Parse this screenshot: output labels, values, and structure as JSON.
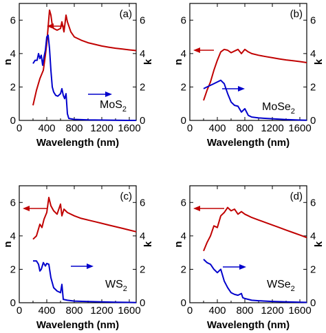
{
  "figure": {
    "colors": {
      "n": "#c00000",
      "k": "#0000cc",
      "axis": "#000000"
    }
  },
  "chart_data": [
    {
      "type": "line",
      "panel": "(a)",
      "material": "MoS",
      "material_sub": "2",
      "xlabel": "Wavelength (nm)",
      "ylabel_left": "n",
      "ylabel_right": "k",
      "xlim": [
        0,
        1700
      ],
      "ylim": [
        0,
        7
      ],
      "xticks": [
        0,
        400,
        800,
        1200,
        1600
      ],
      "yticks": [
        0,
        2,
        4,
        6
      ],
      "series": [
        {
          "name": "n",
          "axis": "left",
          "x": [
            200,
            250,
            300,
            350,
            380,
            400,
            420,
            440,
            460,
            480,
            500,
            550,
            600,
            620,
            650,
            680,
            700,
            750,
            800,
            900,
            1000,
            1100,
            1200,
            1300,
            1400,
            1500,
            1600,
            1700
          ],
          "y": [
            0.9,
            1.8,
            2.5,
            3.0,
            3.9,
            4.6,
            5.6,
            6.6,
            6.3,
            5.7,
            5.5,
            5.4,
            5.5,
            5.9,
            5.3,
            6.3,
            5.9,
            5.3,
            5.0,
            4.8,
            4.65,
            4.55,
            4.45,
            4.38,
            4.32,
            4.27,
            4.22,
            4.18
          ]
        },
        {
          "name": "k",
          "axis": "right",
          "x": [
            200,
            230,
            260,
            280,
            300,
            320,
            340,
            360,
            380,
            400,
            420,
            440,
            460,
            480,
            500,
            530,
            560,
            600,
            620,
            640,
            660,
            680,
            700,
            720,
            800,
            1000,
            1200,
            1400,
            1600,
            1700
          ],
          "y": [
            3.4,
            3.6,
            3.6,
            4.0,
            3.7,
            3.9,
            3.3,
            3.8,
            4.2,
            5.0,
            5.1,
            4.3,
            3.0,
            2.0,
            1.7,
            1.5,
            1.45,
            1.6,
            1.9,
            1.5,
            1.3,
            1.6,
            0.4,
            0.12,
            0.06,
            0.03,
            0.02,
            0.01,
            0.0,
            0.0
          ]
        }
      ]
    },
    {
      "type": "line",
      "panel": "(b)",
      "material": "MoSe",
      "material_sub": "2",
      "xlabel": "Wavelength (nm)",
      "ylabel_left": "n",
      "ylabel_right": "k",
      "xlim": [
        0,
        1700
      ],
      "ylim": [
        0,
        7
      ],
      "xticks": [
        0,
        400,
        800,
        1200,
        1600
      ],
      "yticks": [
        0,
        2,
        4,
        6
      ],
      "series": [
        {
          "name": "n",
          "axis": "left",
          "x": [
            200,
            250,
            300,
            350,
            400,
            450,
            500,
            550,
            600,
            650,
            700,
            750,
            800,
            850,
            900,
            1000,
            1100,
            1200,
            1300,
            1400,
            1500,
            1600,
            1700
          ],
          "y": [
            1.2,
            1.8,
            2.3,
            3.0,
            3.6,
            4.1,
            4.25,
            4.2,
            4.05,
            4.15,
            4.25,
            4.0,
            4.25,
            4.1,
            4.0,
            3.9,
            3.82,
            3.75,
            3.68,
            3.62,
            3.57,
            3.52,
            3.46
          ]
        },
        {
          "name": "k",
          "axis": "right",
          "x": [
            200,
            250,
            300,
            350,
            400,
            450,
            500,
            550,
            600,
            650,
            700,
            750,
            800,
            850,
            900,
            1000,
            1200,
            1400,
            1600,
            1700
          ],
          "y": [
            1.9,
            2.0,
            2.1,
            2.2,
            2.3,
            2.4,
            2.2,
            1.6,
            1.1,
            0.9,
            0.85,
            0.5,
            0.7,
            0.3,
            0.2,
            0.15,
            0.1,
            0.05,
            0.02,
            0.01
          ]
        }
      ]
    },
    {
      "type": "line",
      "panel": "(c)",
      "material": "WS",
      "material_sub": "2",
      "xlabel": "Wavelength (nm)",
      "ylabel_left": "n",
      "ylabel_right": "k",
      "xlim": [
        0,
        1700
      ],
      "ylim": [
        0,
        7
      ],
      "xticks": [
        0,
        400,
        800,
        1200,
        1600
      ],
      "yticks": [
        0,
        2,
        4,
        6
      ],
      "series": [
        {
          "name": "n",
          "axis": "left",
          "x": [
            200,
            250,
            300,
            330,
            360,
            400,
            430,
            460,
            500,
            550,
            600,
            620,
            650,
            700,
            800,
            900,
            1000,
            1100,
            1200,
            1300,
            1400,
            1500,
            1600,
            1700
          ],
          "y": [
            3.8,
            4.0,
            4.7,
            4.5,
            5.0,
            5.4,
            6.3,
            5.8,
            5.5,
            5.3,
            5.9,
            5.2,
            5.6,
            5.4,
            5.2,
            5.05,
            4.95,
            4.85,
            4.75,
            4.65,
            4.55,
            4.45,
            4.35,
            4.25
          ]
        },
        {
          "name": "k",
          "axis": "right",
          "x": [
            200,
            250,
            280,
            300,
            320,
            350,
            380,
            400,
            430,
            460,
            500,
            550,
            600,
            620,
            640,
            700,
            800,
            1000,
            1200,
            1400,
            1600,
            1700
          ],
          "y": [
            2.5,
            2.5,
            2.3,
            1.9,
            2.0,
            2.4,
            2.2,
            2.35,
            2.3,
            1.5,
            0.9,
            0.7,
            0.6,
            1.1,
            0.2,
            0.15,
            0.1,
            0.07,
            0.05,
            0.03,
            0.02,
            0.01
          ]
        }
      ]
    },
    {
      "type": "line",
      "panel": "(d)",
      "material": "WSe",
      "material_sub": "2",
      "xlabel": "Wavelength (nm)",
      "ylabel_left": "n",
      "ylabel_right": "k",
      "xlim": [
        0,
        1700
      ],
      "ylim": [
        0,
        7
      ],
      "xticks": [
        0,
        400,
        800,
        1200,
        1600
      ],
      "yticks": [
        0,
        2,
        4,
        6
      ],
      "series": [
        {
          "name": "n",
          "axis": "left",
          "x": [
            200,
            250,
            300,
            350,
            400,
            450,
            500,
            550,
            600,
            650,
            700,
            750,
            800,
            850,
            900,
            1000,
            1100,
            1200,
            1300,
            1400,
            1500,
            1600,
            1700
          ],
          "y": [
            3.1,
            3.6,
            4.0,
            4.6,
            4.5,
            5.2,
            5.4,
            5.7,
            5.5,
            5.6,
            5.3,
            5.45,
            5.3,
            5.2,
            5.1,
            4.95,
            4.8,
            4.65,
            4.5,
            4.35,
            4.2,
            4.05,
            3.9
          ]
        },
        {
          "name": "k",
          "axis": "right",
          "x": [
            200,
            250,
            300,
            350,
            400,
            450,
            500,
            550,
            600,
            650,
            700,
            750,
            770,
            800,
            900,
            1000,
            1200,
            1400,
            1600,
            1700
          ],
          "y": [
            2.6,
            2.4,
            2.3,
            2.0,
            1.8,
            2.0,
            1.3,
            0.9,
            0.6,
            0.5,
            0.45,
            0.55,
            0.3,
            0.25,
            0.15,
            0.12,
            0.08,
            0.05,
            0.03,
            0.02
          ]
        }
      ]
    }
  ]
}
